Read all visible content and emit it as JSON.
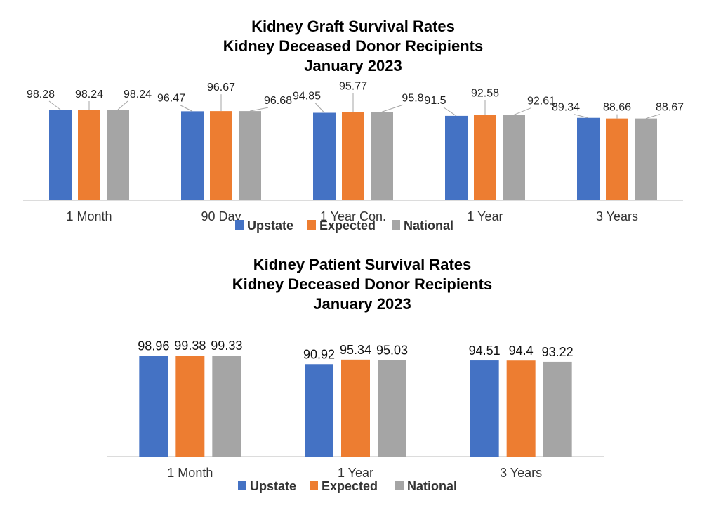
{
  "chart_data": [
    {
      "type": "bar",
      "title": [
        "Kidney Graft Survival Rates",
        "Kidney Deceased Donor Recipients",
        "January 2023"
      ],
      "categories": [
        "1 Month",
        "90 Day",
        "1 Year Con.",
        "1 Year",
        "3 Years"
      ],
      "series": [
        {
          "name": "Upstate",
          "color": "#4472C4",
          "values": [
            98.28,
            96.47,
            94.85,
            91.5,
            89.34
          ]
        },
        {
          "name": "Expected",
          "color": "#ED7D31",
          "values": [
            98.24,
            96.67,
            95.77,
            92.58,
            88.66
          ]
        },
        {
          "name": "National",
          "color": "#A5A5A5",
          "values": [
            98.24,
            96.68,
            95.8,
            92.61,
            88.67
          ]
        }
      ],
      "ylim": [
        0,
        100
      ],
      "legend": "bottom"
    },
    {
      "type": "bar",
      "title": [
        "Kidney Patient Survival Rates",
        "Kidney Deceased Donor Recipients",
        "January 2023"
      ],
      "categories": [
        "1 Month",
        "1 Year",
        "3 Years"
      ],
      "series": [
        {
          "name": "Upstate",
          "color": "#4472C4",
          "values": [
            98.96,
            90.92,
            94.51
          ]
        },
        {
          "name": "Expected",
          "color": "#ED7D31",
          "values": [
            99.38,
            95.34,
            94.4
          ]
        },
        {
          "name": "National",
          "color": "#A5A5A5",
          "values": [
            99.33,
            95.03,
            93.22
          ]
        }
      ],
      "ylim": [
        0,
        100
      ],
      "legend": "bottom"
    }
  ]
}
